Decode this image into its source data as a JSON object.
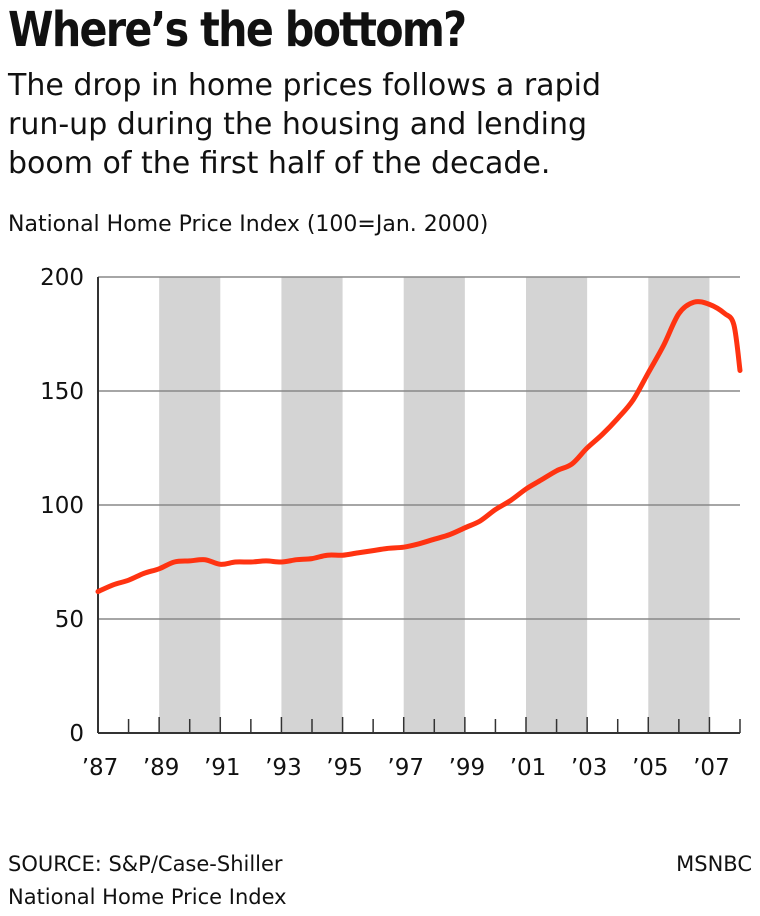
{
  "header": {
    "title": "Where’s the bottom?",
    "subtitle_lines": [
      "The drop in home prices follows a rapid",
      "run-up during the housing and lending",
      "boom  of the first half of the decade."
    ]
  },
  "footer": {
    "source_lines": [
      "SOURCE: S&P/Case-Shiller",
      "National Home Price Index"
    ],
    "credit": "MSNBC"
  },
  "colors": {
    "line": "#ff3311",
    "band": "#d4d4d4",
    "grid": "#888888",
    "axis": "#333333"
  },
  "chart_data": {
    "type": "line",
    "title": "Where’s the bottom?",
    "ylabel": "National Home Price Index (100=Jan. 2000)",
    "xlabel": "",
    "xlim": [
      1987,
      2008
    ],
    "ylim": [
      0,
      200
    ],
    "y_ticks": [
      0,
      50,
      100,
      150,
      200
    ],
    "x_ticks": [
      {
        "value": 1987,
        "label": "’87"
      },
      {
        "value": 1989,
        "label": "’89"
      },
      {
        "value": 1991,
        "label": "’91"
      },
      {
        "value": 1993,
        "label": "’93"
      },
      {
        "value": 1995,
        "label": "’95"
      },
      {
        "value": 1997,
        "label": "’97"
      },
      {
        "value": 1999,
        "label": "’99"
      },
      {
        "value": 2001,
        "label": "’01"
      },
      {
        "value": 2003,
        "label": "’03"
      },
      {
        "value": 2005,
        "label": "’05"
      },
      {
        "value": 2007,
        "label": "’07"
      }
    ],
    "shaded_bands": [
      [
        1989,
        1991
      ],
      [
        1993,
        1995
      ],
      [
        1997,
        1999
      ],
      [
        2001,
        2003
      ],
      [
        2005,
        2007
      ]
    ],
    "grid": true,
    "series": [
      {
        "name": "",
        "x": [
          1987.0,
          1987.5,
          1988.0,
          1988.5,
          1989.0,
          1989.5,
          1990.0,
          1990.5,
          1991.0,
          1991.5,
          1992.0,
          1992.5,
          1993.0,
          1993.5,
          1994.0,
          1994.5,
          1995.0,
          1995.5,
          1996.0,
          1996.5,
          1997.0,
          1997.5,
          1998.0,
          1998.5,
          1999.0,
          1999.5,
          2000.0,
          2000.5,
          2001.0,
          2001.5,
          2002.0,
          2002.5,
          2003.0,
          2003.5,
          2004.0,
          2004.5,
          2005.0,
          2005.5,
          2006.0,
          2006.5,
          2007.0,
          2007.5,
          2007.8,
          2008.0
        ],
        "y": [
          62,
          65,
          67,
          70,
          72,
          75,
          75.5,
          76,
          74,
          75,
          75,
          75.5,
          75,
          76,
          76.5,
          78,
          78,
          79,
          80,
          81,
          81.5,
          83,
          85,
          87,
          90,
          93,
          98,
          102,
          107,
          111,
          115,
          118,
          125,
          131,
          138,
          146,
          158,
          170,
          184,
          189,
          188,
          184,
          179,
          159
        ]
      }
    ]
  }
}
